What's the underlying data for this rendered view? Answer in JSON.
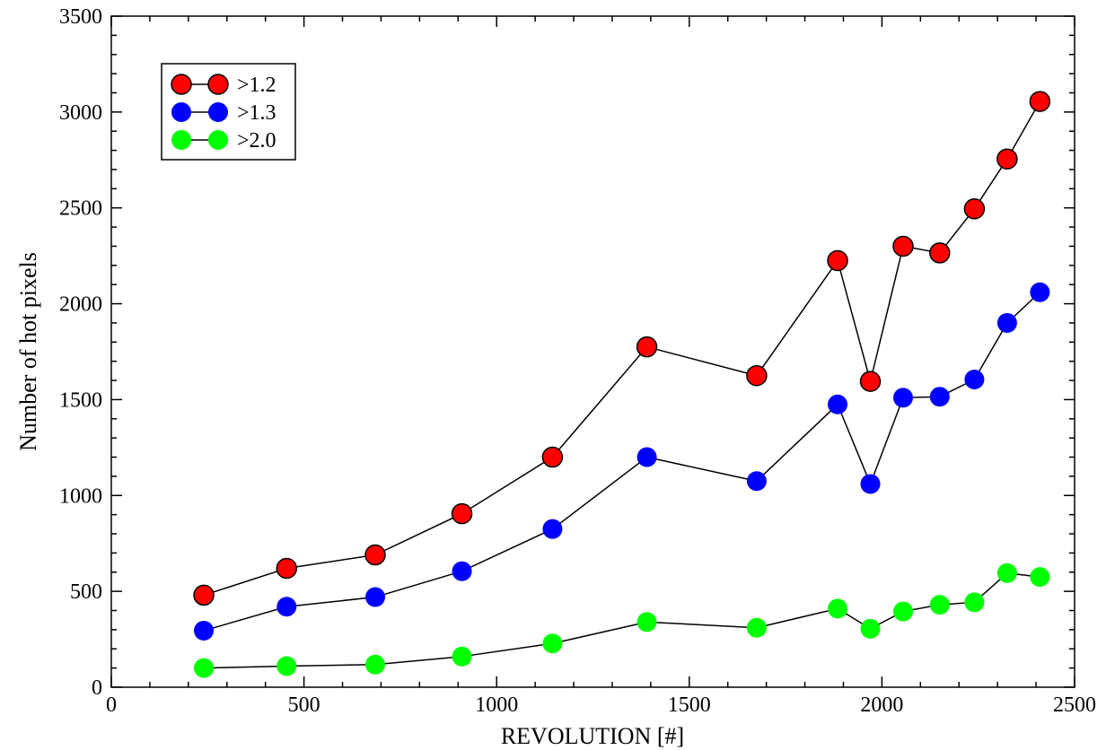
{
  "chart_data": {
    "type": "line",
    "xlabel": "REVOLUTION [#]",
    "ylabel": "Number of hot pixels",
    "xlim": [
      0,
      2500
    ],
    "ylim": [
      0,
      3500
    ],
    "xticks": [
      0,
      500,
      1000,
      1500,
      2000,
      2500
    ],
    "yticks": [
      0,
      500,
      1000,
      1500,
      2000,
      2500,
      3000,
      3500
    ],
    "grid": false,
    "legend_position": "top-left",
    "x": [
      240,
      455,
      685,
      910,
      1145,
      1390,
      1675,
      1885,
      1970,
      2055,
      2150,
      2240,
      2325,
      2410
    ],
    "series": [
      {
        "name": ">1.2",
        "color": "#ff0000",
        "values": [
          480,
          620,
          690,
          905,
          1200,
          1775,
          1625,
          2225,
          1595,
          2300,
          2265,
          2495,
          2755,
          3055
        ]
      },
      {
        "name": ">1.3",
        "color": "#0000ff",
        "values": [
          295,
          420,
          470,
          605,
          825,
          1200,
          1075,
          1475,
          1060,
          1510,
          1515,
          1605,
          1900,
          2060
        ]
      },
      {
        "name": ">2.0",
        "color": "#00ff00",
        "values": [
          100,
          110,
          118,
          160,
          228,
          340,
          310,
          410,
          305,
          395,
          430,
          443,
          595,
          575
        ]
      }
    ]
  }
}
